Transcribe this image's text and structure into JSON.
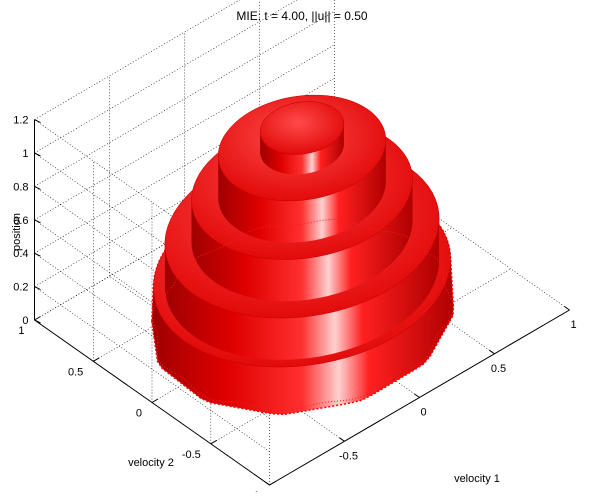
{
  "chart_data": {
    "type": "surface",
    "title": "MIE: t =  4.00, ||u|| = 0.50",
    "xlabel": "velocity 1",
    "ylabel": "velocity 2",
    "zlabel": "position",
    "x_ticks": [
      "-1",
      "-0.5",
      "0",
      "0.5",
      "1"
    ],
    "y_ticks": [
      "-1",
      "-0.5",
      "0",
      "0.5",
      "1"
    ],
    "z_ticks": [
      "0",
      "0.2",
      "0.4",
      "0.6",
      "0.8",
      "1",
      "1.2"
    ],
    "xlim": [
      -1,
      1
    ],
    "ylim": [
      -1,
      1
    ],
    "zlim": [
      0,
      1.2
    ],
    "grid": true,
    "surface_color": "#ff0000",
    "terraces": [
      {
        "radius": 0.78,
        "height": 0.0
      },
      {
        "radius": 0.72,
        "height": 0.25
      },
      {
        "radius": 0.58,
        "height": 0.5
      },
      {
        "radius": 0.44,
        "height": 0.75
      },
      {
        "radius": 0.22,
        "height": 1.0
      }
    ]
  }
}
